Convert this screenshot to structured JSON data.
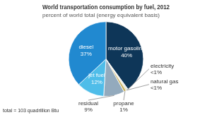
{
  "chart_data": {
    "type": "pie",
    "title": "World transportation consumption by fuel, 2012",
    "subtitle": "percent of world total (energy equivalent basis)",
    "categories": [
      "motor gasoline",
      "electricity",
      "natural gas",
      "propane",
      "residual",
      "jet fuel",
      "diesel"
    ],
    "values": [
      40,
      0.5,
      0.5,
      1,
      9,
      12,
      37
    ],
    "value_labels": [
      "40%",
      "<1%",
      "<1%",
      "1%",
      "9%",
      "12%",
      "37%"
    ],
    "colors": [
      "#0e3658",
      "#c9d8e3",
      "#e0d397",
      "#c6ae5c",
      "#93aabd",
      "#4fbde9",
      "#2189d0"
    ],
    "data_labels": true,
    "annotations": [
      "total = 103 quadrillion Btu"
    ]
  }
}
